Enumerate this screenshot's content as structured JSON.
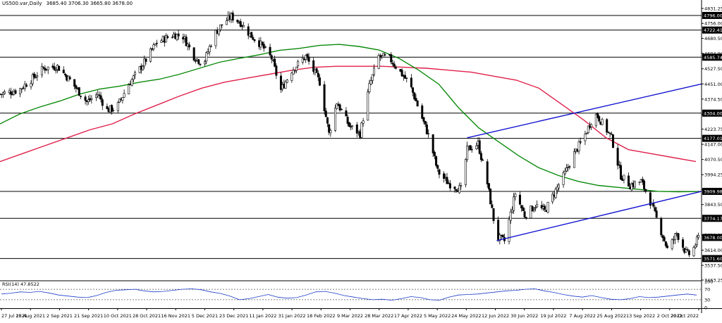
{
  "header": {
    "symbol": "US500.var,Daily",
    "ohlc": "3685.40 3706.30 3665.80 3678.00"
  },
  "colors": {
    "background": "#ffffff",
    "candle_up": "#ffffff",
    "candle_down": "#000000",
    "candle_outline": "#000000",
    "ma_fast": "#0a8a0a",
    "ma_slow": "#e0204a",
    "trendline": "#1515d0",
    "level_line": "#000000",
    "rsi_line": "#1c3cc8"
  },
  "chart_data": [
    {
      "type": "line",
      "title": "US500.var,Daily",
      "price_axis_ticks": [
        "4831.25",
        "4756.00",
        "4680.50",
        "4604.90",
        "4527.50",
        "4451.00",
        "4374.50",
        "4298.25",
        "4223.75",
        "4147.00",
        "4070.50",
        "3994.25",
        "3918.00",
        "3843.50",
        "3766.00",
        "3690.00",
        "3614.00",
        "3537.50",
        "3463.25"
      ],
      "ylim": [
        3463.25,
        4831.25
      ],
      "x_tick_labels": [
        "27 Jul 2021",
        "15 Aug 2021",
        "2 Sep 2021",
        "21 Sep 2021",
        "10 Oct 2021",
        "28 Oct 2021",
        "16 Nov 2021",
        "5 Dec 2021",
        "23 Dec 2021",
        "11 Jan 2022",
        "31 Jan 2022",
        "18 Feb 2022",
        "9 Mar 2022",
        "28 Mar 2022",
        "17 Apr 2022",
        "5 May 2022",
        "24 May 2022",
        "12 Jun 2022",
        "30 Jun 2022",
        "19 Jul 2022",
        "7 Aug 2022",
        "25 Aug 2022",
        "13 Sep 2022",
        "2 Oct 2022",
        "20 Oct 2022"
      ],
      "horizontal_levels": [
        "4796.00",
        "4722.41",
        "4585.74",
        "4304.00",
        "4177.01",
        "3909.98",
        "3774.17",
        "3571.60"
      ],
      "current_price": "3678.00",
      "close_series": {
        "name": "",
        "x": [
          "2021-07-27",
          "2021-08-08",
          "2021-08-15",
          "2021-08-24",
          "2021-09-02",
          "2021-09-10",
          "2021-09-21",
          "2021-09-28",
          "2021-10-04",
          "2021-10-10",
          "2021-10-18",
          "2021-10-28",
          "2021-11-05",
          "2021-11-16",
          "2021-11-22",
          "2021-11-29",
          "2021-12-05",
          "2021-12-12",
          "2021-12-18",
          "2021-12-23",
          "2021-12-29",
          "2022-01-04",
          "2022-01-11",
          "2022-01-18",
          "2022-01-24",
          "2022-01-31",
          "2022-02-09",
          "2022-02-18",
          "2022-02-24",
          "2022-03-01",
          "2022-03-09",
          "2022-03-16",
          "2022-03-22",
          "2022-03-28",
          "2022-04-04",
          "2022-04-10",
          "2022-04-17",
          "2022-04-24",
          "2022-04-30",
          "2022-05-05",
          "2022-05-12",
          "2022-05-20",
          "2022-05-24",
          "2022-05-31",
          "2022-06-06",
          "2022-06-12",
          "2022-06-17",
          "2022-06-24",
          "2022-06-30",
          "2022-07-07",
          "2022-07-13",
          "2022-07-19",
          "2022-07-26",
          "2022-08-01",
          "2022-08-07",
          "2022-08-14",
          "2022-08-16",
          "2022-08-21",
          "2022-08-25",
          "2022-08-31",
          "2022-09-06",
          "2022-09-13",
          "2022-09-18",
          "2022-09-25",
          "2022-09-30",
          "2022-10-02",
          "2022-10-06",
          "2022-10-12",
          "2022-10-15",
          "2022-10-20"
        ],
        "values": [
          4400,
          4420,
          4465,
          4530,
          4540,
          4470,
          4360,
          4400,
          4320,
          4330,
          4450,
          4560,
          4660,
          4700,
          4690,
          4590,
          4550,
          4700,
          4760,
          4790,
          4760,
          4700,
          4650,
          4580,
          4420,
          4520,
          4590,
          4460,
          4200,
          4360,
          4240,
          4200,
          4440,
          4590,
          4580,
          4520,
          4450,
          4300,
          4170,
          4010,
          3950,
          3920,
          4120,
          4150,
          3950,
          3680,
          3660,
          3900,
          3790,
          3840,
          3810,
          3900,
          4000,
          4100,
          4180,
          4300,
          4290,
          4230,
          4180,
          3990,
          3940,
          3960,
          3880,
          3730,
          3620,
          3640,
          3700,
          3600,
          3590,
          3678
        ]
      },
      "ma_fast": {
        "name": "",
        "values": [
          4250,
          4300,
          4335,
          4365,
          4400,
          4425,
          4440,
          4460,
          4475,
          4500,
          4530,
          4560,
          4580,
          4598,
          4620,
          4630,
          4645,
          4650,
          4640,
          4622,
          4580,
          4520,
          4450,
          4330,
          4230,
          4160,
          4090,
          4030,
          3990,
          3960,
          3940,
          3930,
          3920,
          3910,
          3908,
          3909
        ]
      },
      "ma_slow": {
        "name": "",
        "values": [
          4060,
          4100,
          4140,
          4180,
          4220,
          4250,
          4300,
          4345,
          4390,
          4430,
          4460,
          4480,
          4500,
          4520,
          4535,
          4540,
          4540,
          4540,
          4535,
          4530,
          4520,
          4510,
          4490,
          4470,
          4430,
          4350,
          4270,
          4180,
          4120,
          4100,
          4080,
          4060
        ]
      },
      "trendlines": [
        {
          "from": [
            "2022-05-24",
            4180
          ],
          "to": [
            "2022-10-22",
            4451
          ]
        },
        {
          "from": [
            "2022-06-12",
            3662
          ],
          "to": [
            "2022-10-22",
            3910
          ]
        }
      ]
    },
    {
      "type": "line",
      "title": "RSI(14) 47.8522",
      "ylim": [
        0,
        100
      ],
      "ticks": [
        "100",
        "70",
        "30",
        "0"
      ],
      "levels": [
        70,
        30
      ],
      "series": [
        {
          "name": "",
          "values": [
            52,
            55,
            60,
            58,
            62,
            56,
            48,
            44,
            40,
            38,
            46,
            58,
            66,
            68,
            70,
            64,
            60,
            62,
            66,
            70,
            72,
            68,
            60,
            54,
            44,
            30,
            34,
            42,
            50,
            40,
            36,
            38,
            48,
            60,
            62,
            55,
            46,
            40,
            34,
            30,
            32,
            28,
            34,
            42,
            38,
            30,
            28,
            40,
            48,
            50,
            52,
            56,
            60,
            64,
            66,
            70,
            72,
            64,
            58,
            50,
            44,
            40,
            46,
            38,
            32,
            30,
            34,
            42,
            38,
            40,
            44,
            48,
            52,
            47.85
          ]
        }
      ],
      "value_label": "47.8522"
    }
  ]
}
